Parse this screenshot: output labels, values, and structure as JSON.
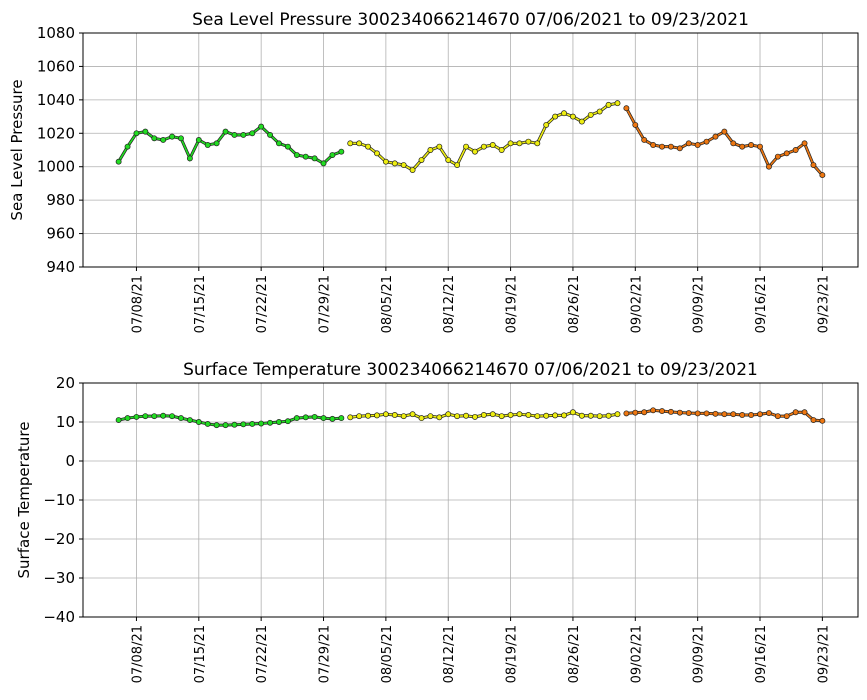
{
  "chart_data": [
    {
      "type": "line",
      "title": "Sea Level Pressure 300234066214670  07/06/2021 to 09/23/2021",
      "y_label": "Sea Level Pressure",
      "xlim": [
        "07/02/21",
        "09/27/21"
      ],
      "xticks": [
        "07/08/21",
        "07/15/21",
        "07/22/21",
        "07/29/21",
        "08/05/21",
        "08/12/21",
        "08/19/21",
        "08/26/21",
        "09/02/21",
        "09/09/21",
        "09/16/21",
        "09/23/21"
      ],
      "ylim": [
        940,
        1080
      ],
      "yticks": [
        940,
        960,
        980,
        1000,
        1020,
        1040,
        1060,
        1080
      ],
      "grid": true,
      "series": [
        {
          "color": "#22dd22",
          "x": [
            "07/06/21",
            "07/07/21",
            "07/08/21",
            "07/09/21",
            "07/10/21",
            "07/11/21",
            "07/12/21",
            "07/13/21",
            "07/14/21",
            "07/15/21",
            "07/16/21",
            "07/17/21",
            "07/18/21",
            "07/19/21",
            "07/20/21",
            "07/21/21",
            "07/22/21",
            "07/23/21",
            "07/24/21",
            "07/25/21",
            "07/26/21",
            "07/27/21",
            "07/28/21",
            "07/29/21",
            "07/30/21",
            "07/31/21"
          ],
          "values": [
            1003,
            1012,
            1020,
            1021,
            1017,
            1016,
            1018,
            1017,
            1005,
            1016,
            1013,
            1014,
            1021,
            1019,
            1019,
            1020,
            1024,
            1019,
            1014,
            1012,
            1007,
            1006,
            1005,
            1002,
            1007,
            1009
          ]
        },
        {
          "color": "#eeee11",
          "x": [
            "08/01/21",
            "08/02/21",
            "08/03/21",
            "08/04/21",
            "08/05/21",
            "08/06/21",
            "08/07/21",
            "08/08/21",
            "08/09/21",
            "08/10/21",
            "08/11/21",
            "08/12/21",
            "08/13/21",
            "08/14/21",
            "08/15/21",
            "08/16/21",
            "08/17/21",
            "08/18/21",
            "08/19/21",
            "08/20/21",
            "08/21/21",
            "08/22/21",
            "08/23/21",
            "08/24/21",
            "08/25/21",
            "08/26/21",
            "08/27/21",
            "08/28/21",
            "08/29/21",
            "08/30/21",
            "08/31/21"
          ],
          "values": [
            1014,
            1014,
            1012,
            1008,
            1003,
            1002,
            1001,
            998,
            1004,
            1010,
            1012,
            1004,
            1001,
            1012,
            1009,
            1012,
            1013,
            1010,
            1014,
            1014,
            1015,
            1014,
            1025,
            1030,
            1032,
            1030,
            1027,
            1031,
            1033,
            1037,
            1038
          ]
        },
        {
          "color": "#ee7711",
          "x": [
            "09/01/21",
            "09/02/21",
            "09/03/21",
            "09/04/21",
            "09/05/21",
            "09/06/21",
            "09/07/21",
            "09/08/21",
            "09/09/21",
            "09/10/21",
            "09/11/21",
            "09/12/21",
            "09/13/21",
            "09/14/21",
            "09/15/21",
            "09/16/21",
            "09/17/21",
            "09/18/21",
            "09/19/21",
            "09/20/21",
            "09/21/21",
            "09/22/21",
            "09/23/21"
          ],
          "values": [
            1035,
            1025,
            1016,
            1013,
            1012,
            1012,
            1011,
            1014,
            1013,
            1015,
            1018,
            1021,
            1014,
            1012,
            1013,
            1012,
            1000,
            1006,
            1008,
            1010,
            1014,
            1001,
            995
          ]
        }
      ]
    },
    {
      "type": "line",
      "title": "Surface Temperature 300234066214670  07/06/2021 to 09/23/2021",
      "y_label": "Surface Temperature",
      "xlim": [
        "07/02/21",
        "09/27/21"
      ],
      "xticks": [
        "07/08/21",
        "07/15/21",
        "07/22/21",
        "07/29/21",
        "08/05/21",
        "08/12/21",
        "08/19/21",
        "08/26/21",
        "09/02/21",
        "09/09/21",
        "09/16/21",
        "09/23/21"
      ],
      "ylim": [
        -40,
        20
      ],
      "yticks": [
        {
          "value": -40,
          "label": "−40"
        },
        {
          "value": -30,
          "label": "−30"
        },
        {
          "value": -20,
          "label": "−20"
        },
        {
          "value": -10,
          "label": "−10"
        },
        0,
        10,
        20
      ],
      "grid": true,
      "series": [
        {
          "color": "#22dd22",
          "x": [
            "07/06/21",
            "07/07/21",
            "07/08/21",
            "07/09/21",
            "07/10/21",
            "07/11/21",
            "07/12/21",
            "07/13/21",
            "07/14/21",
            "07/15/21",
            "07/16/21",
            "07/17/21",
            "07/18/21",
            "07/19/21",
            "07/20/21",
            "07/21/21",
            "07/22/21",
            "07/23/21",
            "07/24/21",
            "07/25/21",
            "07/26/21",
            "07/27/21",
            "07/28/21",
            "07/29/21",
            "07/30/21",
            "07/31/21"
          ],
          "values": [
            10.5,
            11,
            11.3,
            11.5,
            11.5,
            11.6,
            11.5,
            11,
            10.5,
            10,
            9.5,
            9.2,
            9.2,
            9.3,
            9.4,
            9.5,
            9.6,
            9.8,
            10,
            10.2,
            11,
            11.2,
            11.3,
            11,
            10.8,
            11
          ]
        },
        {
          "color": "#eeee11",
          "x": [
            "08/01/21",
            "08/02/21",
            "08/03/21",
            "08/04/21",
            "08/05/21",
            "08/06/21",
            "08/07/21",
            "08/08/21",
            "08/09/21",
            "08/10/21",
            "08/11/21",
            "08/12/21",
            "08/13/21",
            "08/14/21",
            "08/15/21",
            "08/16/21",
            "08/17/21",
            "08/18/21",
            "08/19/21",
            "08/20/21",
            "08/21/21",
            "08/22/21",
            "08/23/21",
            "08/24/21",
            "08/25/21",
            "08/26/21",
            "08/27/21",
            "08/28/21",
            "08/29/21",
            "08/30/21",
            "08/31/21"
          ],
          "values": [
            11.2,
            11.5,
            11.6,
            11.7,
            12,
            11.8,
            11.5,
            12,
            11,
            11.5,
            11.2,
            12,
            11.5,
            11.6,
            11.3,
            11.8,
            12,
            11.5,
            11.8,
            12,
            11.8,
            11.5,
            11.6,
            11.7,
            11.7,
            12.5,
            11.6,
            11.6,
            11.5,
            11.6,
            12
          ]
        },
        {
          "color": "#ee7711",
          "x": [
            "09/01/21",
            "09/02/21",
            "09/03/21",
            "09/04/21",
            "09/05/21",
            "09/06/21",
            "09/07/21",
            "09/08/21",
            "09/09/21",
            "09/10/21",
            "09/11/21",
            "09/12/21",
            "09/13/21",
            "09/14/21",
            "09/15/21",
            "09/16/21",
            "09/17/21",
            "09/18/21",
            "09/19/21",
            "09/20/21",
            "09/21/21",
            "09/22/21",
            "09/23/21"
          ],
          "values": [
            12.2,
            12.4,
            12.5,
            13,
            12.8,
            12.6,
            12.4,
            12.3,
            12.2,
            12.2,
            12.1,
            12,
            12,
            11.8,
            11.8,
            12,
            12.3,
            11.5,
            11.5,
            12.5,
            12.5,
            10.5,
            10.3
          ]
        }
      ]
    }
  ]
}
